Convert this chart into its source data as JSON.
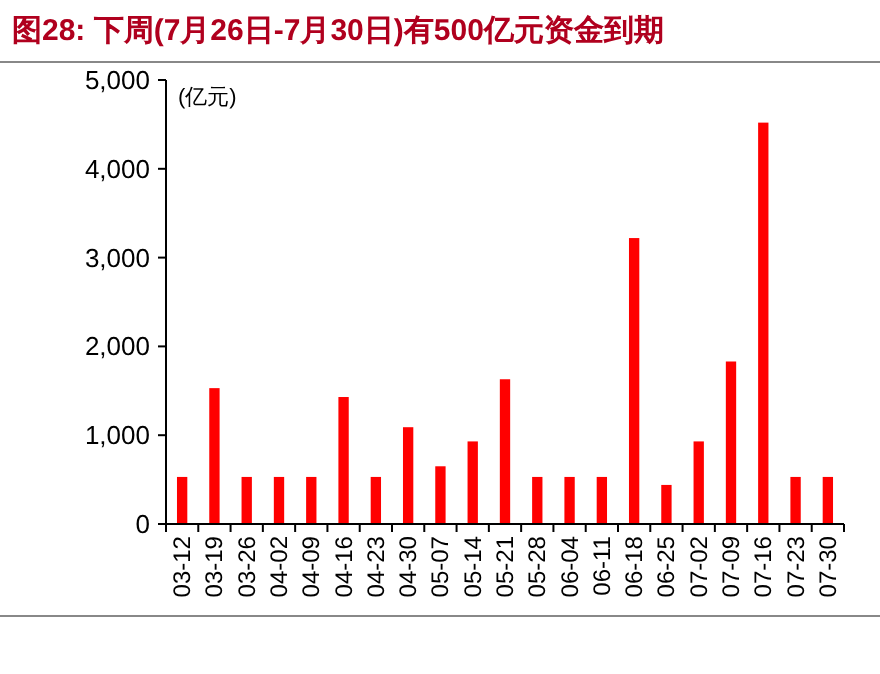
{
  "chart_data": {
    "type": "bar",
    "title": "图28:  下周(7月26日-7月30日)有500亿元资金到期",
    "ylabel": "(亿元)",
    "categories": [
      "03-12",
      "03-19",
      "03-26",
      "04-02",
      "04-09",
      "04-16",
      "04-23",
      "04-30",
      "05-07",
      "05-14",
      "05-21",
      "05-28",
      "06-04",
      "06-11",
      "06-18",
      "06-25",
      "07-02",
      "07-09",
      "07-16",
      "07-23",
      "07-30"
    ],
    "values": [
      530,
      1530,
      530,
      530,
      530,
      1430,
      530,
      1090,
      650,
      930,
      1630,
      530,
      530,
      530,
      3220,
      440,
      930,
      1830,
      4520,
      530,
      530
    ],
    "color": "#ff0000",
    "ylim": [
      0,
      5000
    ],
    "yticks": [
      {
        "value": 0,
        "label": "0"
      },
      {
        "value": 1000,
        "label": "1,000"
      },
      {
        "value": 2000,
        "label": "2,000"
      },
      {
        "value": 3000,
        "label": "3,000"
      },
      {
        "value": 4000,
        "label": "4,000"
      },
      {
        "value": 5000,
        "label": "5,000"
      }
    ],
    "grid": false
  }
}
